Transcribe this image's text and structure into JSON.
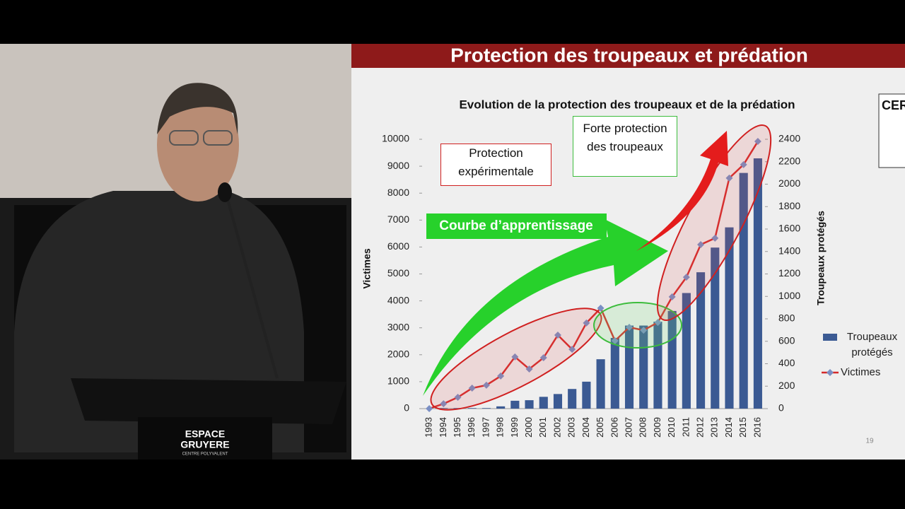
{
  "slide": {
    "title": "Protection des troupeaux et prédation",
    "logo": "CERF",
    "page_number": "19"
  },
  "podium": {
    "logo_line1": "ESPACE",
    "logo_line2": "GRUYERE",
    "logo_line3": "CENTRE POLYVALENT"
  },
  "chart_data": {
    "type": "bar-line",
    "title": "Evolution de la protection des troupeaux et de la prédation",
    "y_label": "Victimes",
    "y2_label": "Troupeaux protégés",
    "annotations": [
      "Protection expérimentale",
      "Forte protection des troupeaux",
      "Courbe d’apprentissage"
    ],
    "categories": [
      "1993",
      "1994",
      "1995",
      "1996",
      "1997",
      "1998",
      "1999",
      "2000",
      "2001",
      "2002",
      "2003",
      "2004",
      "2005",
      "2006",
      "2007",
      "2008",
      "2009",
      "2010",
      "2011",
      "2012",
      "2013",
      "2014",
      "2015",
      "2016"
    ],
    "series": [
      {
        "name": "Troupeaux protégés",
        "type": "bar",
        "axis": "y2",
        "color": "#3b5a93",
        "values": [
          0,
          5,
          5,
          5,
          5,
          20,
          70,
          75,
          105,
          130,
          175,
          240,
          440,
          630,
          740,
          740,
          775,
          870,
          1030,
          1215,
          1435,
          1615,
          2100,
          2230
        ]
      },
      {
        "name": "Victimes",
        "type": "line",
        "axis": "y",
        "color": "#d52a2a",
        "marker_color": "#7a8fc4",
        "values": [
          0,
          180,
          420,
          760,
          870,
          1210,
          1920,
          1470,
          1890,
          2730,
          2200,
          3180,
          3730,
          2520,
          3020,
          2910,
          3200,
          4150,
          4880,
          6090,
          6330,
          8560,
          9060,
          9920
        ]
      }
    ],
    "ylim": [
      0,
      10000
    ],
    "yticks": [
      0,
      1000,
      2000,
      3000,
      4000,
      5000,
      6000,
      7000,
      8000,
      9000,
      10000
    ],
    "y2lim": [
      0,
      2400
    ],
    "y2ticks": [
      0,
      200,
      400,
      600,
      800,
      1000,
      1200,
      1400,
      1600,
      1800,
      2000,
      2200,
      2400
    ]
  }
}
